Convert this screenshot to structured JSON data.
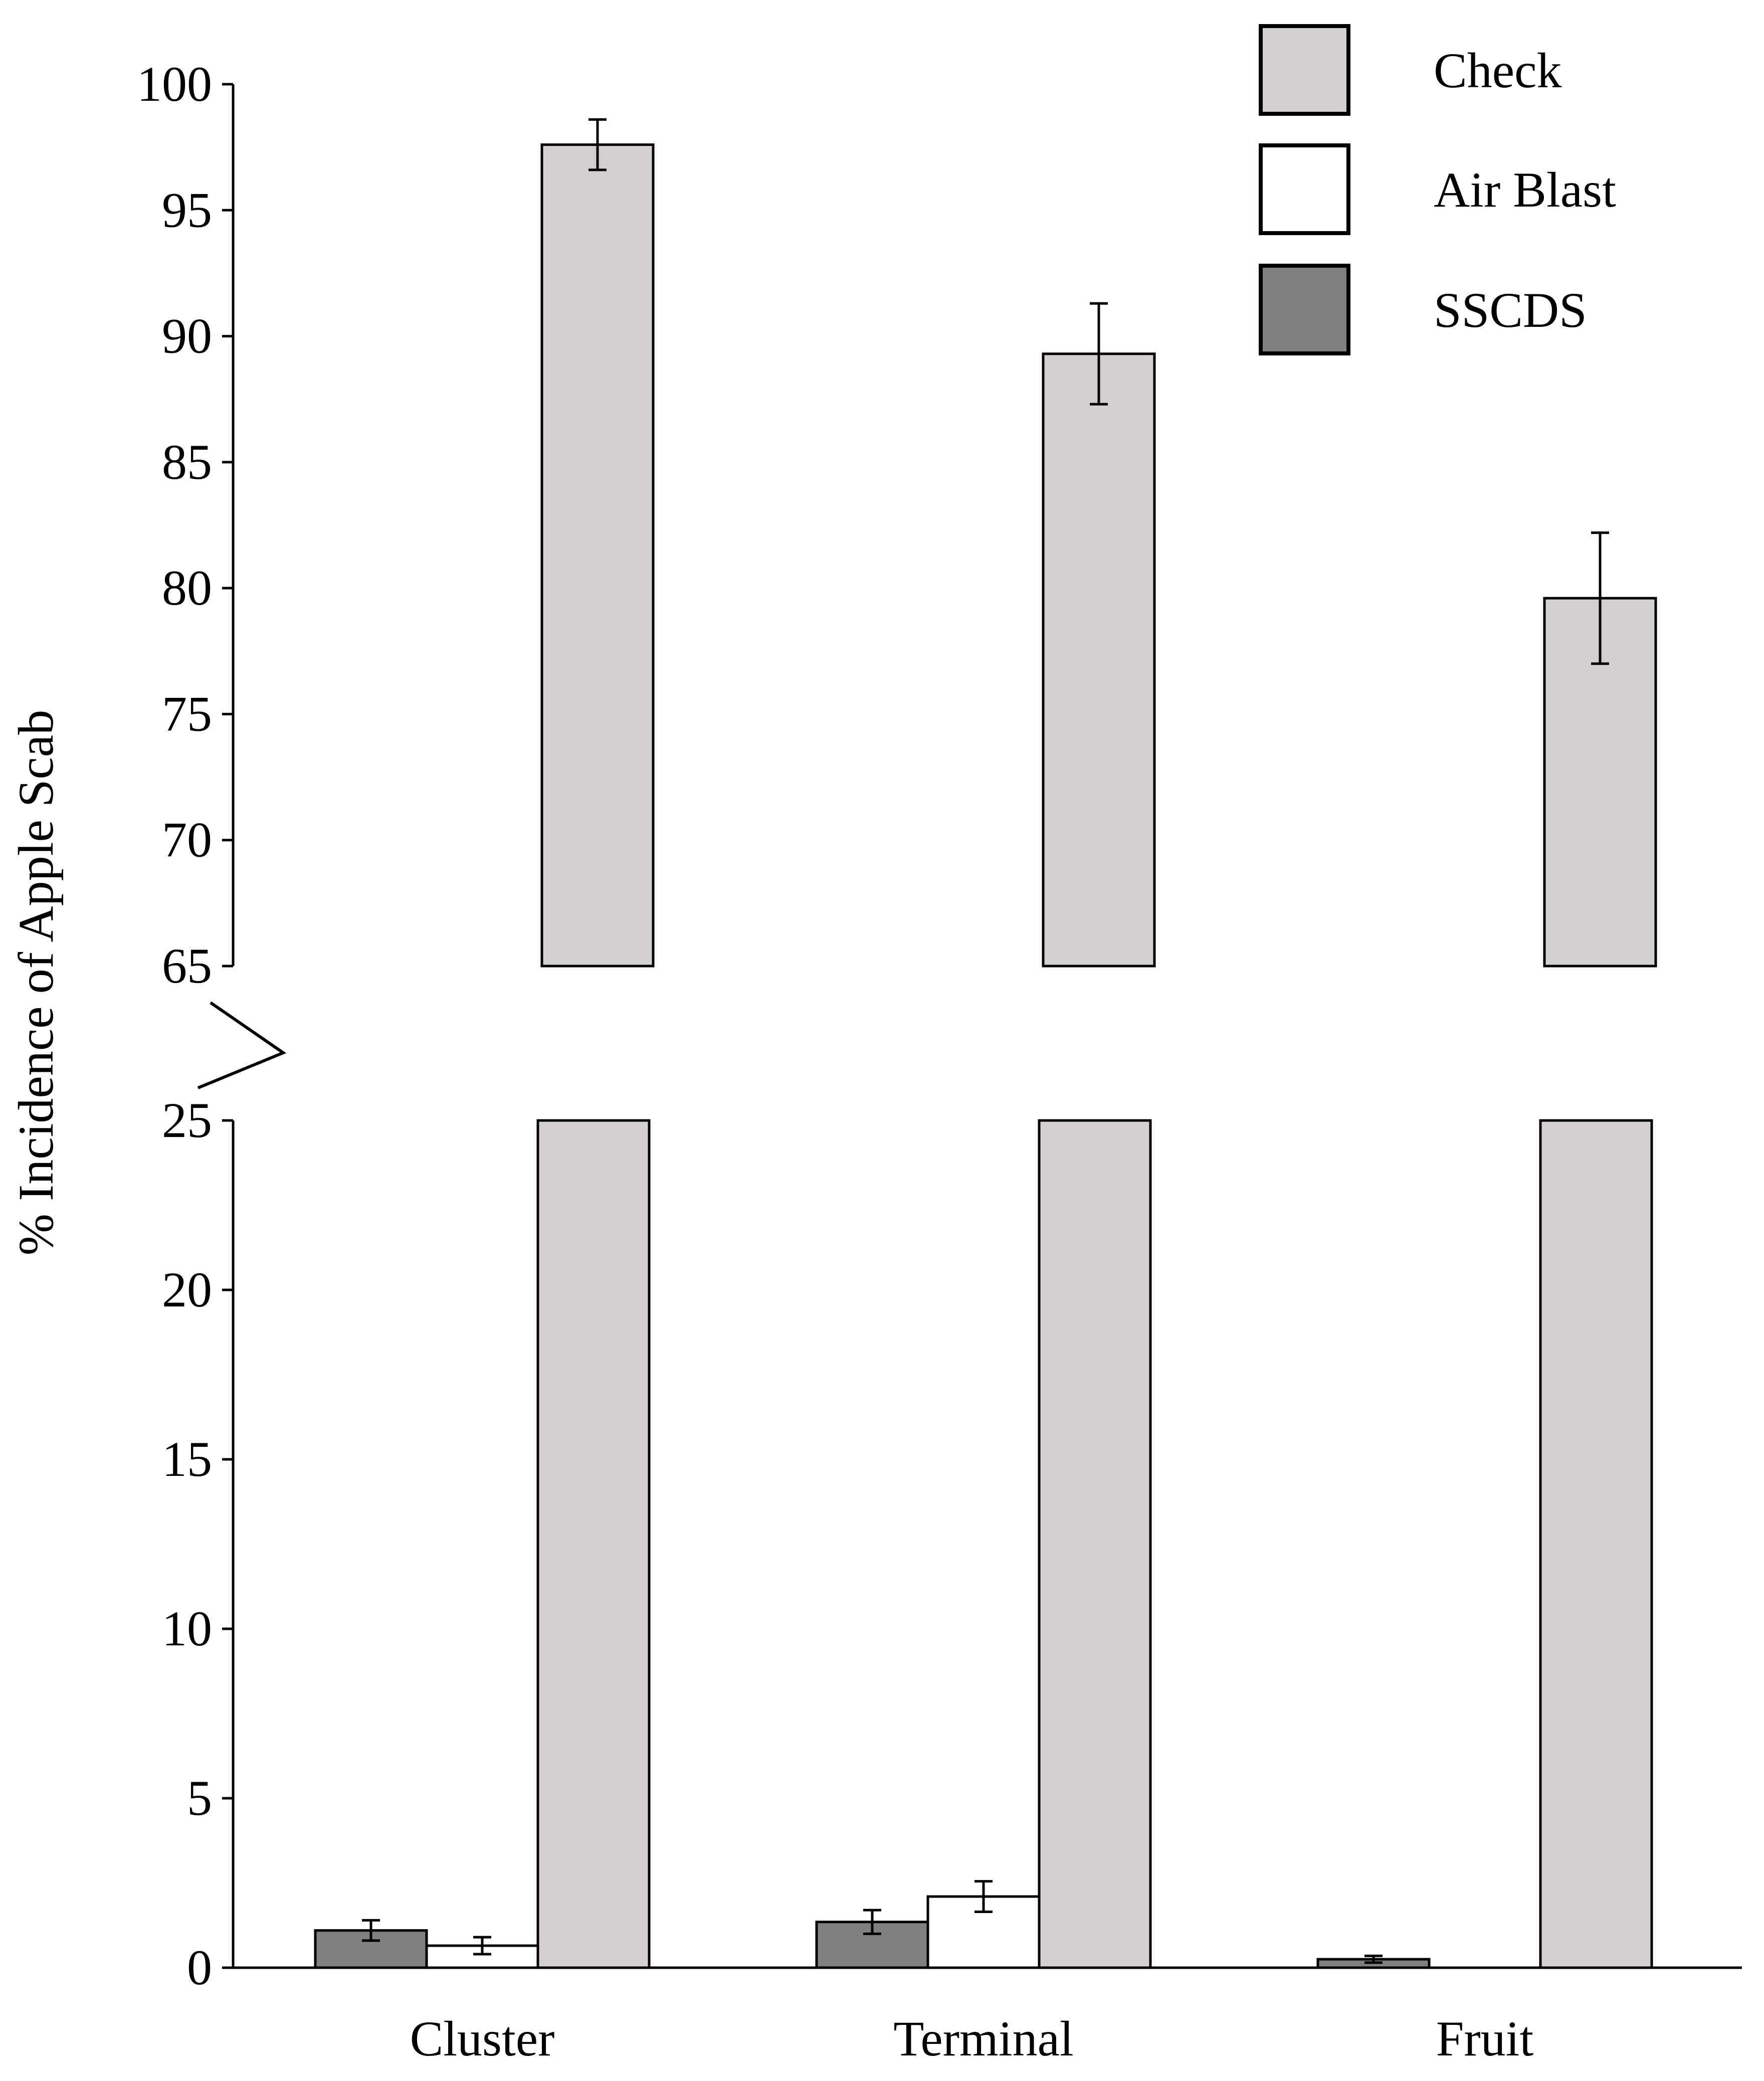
{
  "chart_data": {
    "type": "bar",
    "title": "",
    "xlabel": "",
    "ylabel": "% Incidence of Apple Scab",
    "categories": [
      "Cluster",
      "Terminal",
      "Fruit"
    ],
    "axis_break": {
      "lower_range": [
        0,
        25
      ],
      "upper_range": [
        65,
        100
      ]
    },
    "yticks_lower": [
      0,
      5,
      10,
      15,
      20,
      25
    ],
    "yticks_upper": [
      65,
      70,
      75,
      80,
      85,
      90,
      95,
      100
    ],
    "legend_position": "top-right",
    "grid": false,
    "series": [
      {
        "name": "SSCDS",
        "color": "#808080",
        "values": [
          1.1,
          1.35,
          0.25
        ],
        "errors": [
          0.3,
          0.35,
          0.1
        ]
      },
      {
        "name": "Air Blast",
        "color": "#ffffff",
        "values": [
          0.65,
          2.1,
          0
        ],
        "errors": [
          0.25,
          0.45,
          0
        ]
      },
      {
        "name": "Check",
        "color": "#d4d0d0",
        "values": [
          97.6,
          89.3,
          79.6
        ],
        "errors": [
          1.0,
          2.0,
          2.6
        ]
      }
    ],
    "legend_order": [
      "Check",
      "Air Blast",
      "SSCDS"
    ]
  }
}
